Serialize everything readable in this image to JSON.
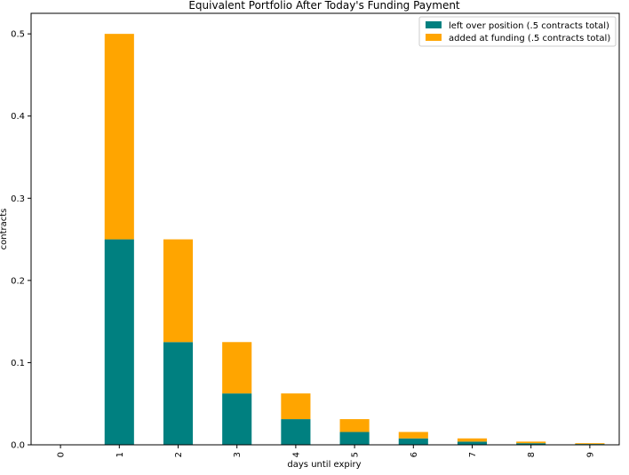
{
  "chart_data": {
    "type": "bar",
    "stacked": true,
    "title": "Equivalent Portfolio After Today's Funding Payment",
    "xlabel": "days until expiry",
    "ylabel": "contracts",
    "categories": [
      "0",
      "1",
      "2",
      "3",
      "4",
      "5",
      "6",
      "7",
      "8",
      "9"
    ],
    "series": [
      {
        "name": "left over position (.5 contracts total)",
        "color": "#008080",
        "values": [
          0,
          0.25,
          0.125,
          0.0625,
          0.03125,
          0.015625,
          0.0078125,
          0.00390625,
          0.001953125,
          0.0009765625
        ]
      },
      {
        "name": "added at funding (.5 contracts total)",
        "color": "#FFA500",
        "values": [
          0,
          0.25,
          0.125,
          0.0625,
          0.03125,
          0.015625,
          0.0078125,
          0.00390625,
          0.001953125,
          0.0009765625
        ]
      }
    ],
    "ylim": [
      0,
      0.525
    ],
    "yticks": [
      "0.0",
      "0.1",
      "0.2",
      "0.3",
      "0.4",
      "0.5"
    ],
    "ytick_values": [
      0,
      0.1,
      0.2,
      0.3,
      0.4,
      0.5
    ],
    "xtick_rotation": "vertical",
    "grid": false,
    "legend_position": "top-right"
  }
}
